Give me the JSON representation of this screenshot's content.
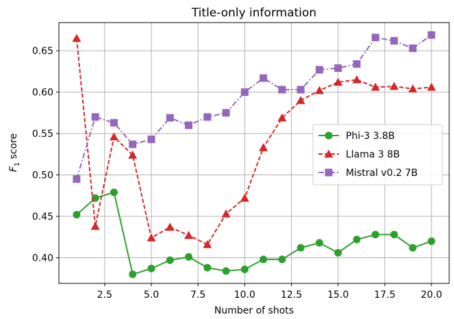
{
  "chart_data": {
    "type": "line",
    "title": "Title-only information",
    "xlabel": "Number of shots",
    "ylabel_main": "F",
    "ylabel_sub": "1",
    "ylabel_rest": " score",
    "xlim": [
      0.05,
      20.95
    ],
    "ylim": [
      0.369,
      0.684
    ],
    "xticks": [
      2.5,
      5.0,
      7.5,
      10.0,
      12.5,
      15.0,
      17.5,
      20.0
    ],
    "xtick_labels": [
      "2.5",
      "5.0",
      "7.5",
      "10.0",
      "12.5",
      "15.0",
      "17.5",
      "20.0"
    ],
    "yticks": [
      0.4,
      0.45,
      0.5,
      0.55,
      0.6,
      0.65
    ],
    "ytick_labels": [
      "0.40",
      "0.45",
      "0.50",
      "0.55",
      "0.60",
      "0.65"
    ],
    "grid": true,
    "legend_position": "center-right",
    "x": [
      1,
      2,
      3,
      4,
      5,
      6,
      7,
      8,
      9,
      10,
      11,
      12,
      13,
      14,
      15,
      16,
      17,
      18,
      19,
      20
    ],
    "series": [
      {
        "name": "Phi-3 3.8B",
        "color": "#2ca02c",
        "marker": "circle",
        "dash": "solid",
        "values": [
          0.452,
          0.472,
          0.479,
          0.38,
          0.387,
          0.397,
          0.401,
          0.388,
          0.384,
          0.386,
          0.398,
          0.398,
          0.412,
          0.418,
          0.406,
          0.422,
          0.428,
          0.428,
          0.412,
          0.42
        ]
      },
      {
        "name": "Llama 3 8B",
        "color": "#d62728",
        "marker": "triangle",
        "dash": "dashed",
        "values": [
          0.665,
          0.438,
          0.546,
          0.524,
          0.424,
          0.437,
          0.427,
          0.416,
          0.453,
          0.472,
          0.533,
          0.569,
          0.59,
          0.602,
          0.612,
          0.615,
          0.606,
          0.607,
          0.604,
          0.606
        ]
      },
      {
        "name": "Mistral v0.2 7B",
        "color": "#9467bd",
        "marker": "square",
        "dash": "dashdot",
        "values": [
          0.495,
          0.57,
          0.563,
          0.537,
          0.543,
          0.569,
          0.56,
          0.57,
          0.575,
          0.6,
          0.617,
          0.603,
          0.603,
          0.627,
          0.629,
          0.634,
          0.666,
          0.662,
          0.653,
          0.669
        ]
      }
    ]
  }
}
